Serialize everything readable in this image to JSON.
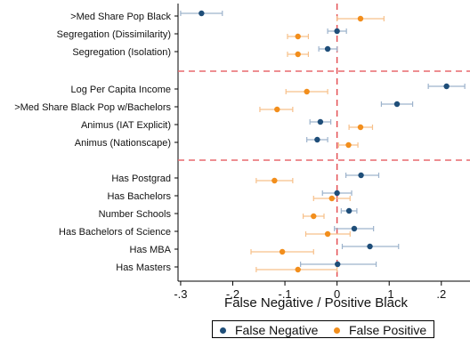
{
  "chart_data": {
    "type": "scatter",
    "title": "",
    "xlabel": "False Negative / Positive Black",
    "ylabel": "",
    "xlim": [
      -0.305,
      0.255
    ],
    "xticks": [
      -0.3,
      -0.2,
      -0.1,
      0,
      0.1,
      0.2
    ],
    "xtick_labels": [
      "-.3",
      "-.2",
      "-.1",
      "0",
      ".1",
      ".2"
    ],
    "reference_line": 0,
    "grid": false,
    "legend_position": "bottom",
    "categories": [
      ">Med Share Pop Black",
      "Segregation (Dissimilarity)",
      "Segregation (Isolation)",
      "Log Per Capita Income",
      ">Med Share Black Pop w/Bachelors",
      "Animus (IAT Explicit)",
      "Animus (Nationscape)",
      "Has Postgrad",
      "Has Bachelors",
      "Number Schools",
      "Has Bachelors of Science",
      "Has MBA",
      "Has Masters"
    ],
    "group_separators_after": [
      2,
      6
    ],
    "series": [
      {
        "name": "False Negative",
        "color": "#1f4e79",
        "estimates": [
          -0.26,
          0.0,
          -0.018,
          0.21,
          0.115,
          -0.032,
          -0.038,
          0.046,
          0.0,
          0.023,
          0.033,
          0.063,
          0.001
        ],
        "ci_low": [
          -0.3,
          -0.018,
          -0.035,
          0.175,
          0.085,
          -0.052,
          -0.058,
          0.017,
          -0.028,
          0.008,
          -0.005,
          0.01,
          -0.07
        ],
        "ci_high": [
          -0.22,
          0.018,
          0.0,
          0.245,
          0.145,
          -0.012,
          -0.018,
          0.08,
          0.028,
          0.038,
          0.07,
          0.118,
          0.075
        ]
      },
      {
        "name": "False Positive",
        "color": "#f28e1c",
        "estimates": [
          0.045,
          -0.075,
          -0.075,
          -0.058,
          -0.115,
          0.045,
          0.022,
          -0.12,
          -0.01,
          -0.045,
          -0.018,
          -0.105,
          -0.075
        ],
        "ci_low": [
          0.0,
          -0.095,
          -0.095,
          -0.098,
          -0.148,
          0.023,
          0.003,
          -0.155,
          -0.045,
          -0.065,
          -0.06,
          -0.165,
          -0.155
        ],
        "ci_high": [
          0.09,
          -0.055,
          -0.055,
          -0.018,
          -0.085,
          0.068,
          0.04,
          -0.085,
          0.025,
          -0.025,
          0.025,
          -0.045,
          0.0
        ]
      }
    ]
  }
}
